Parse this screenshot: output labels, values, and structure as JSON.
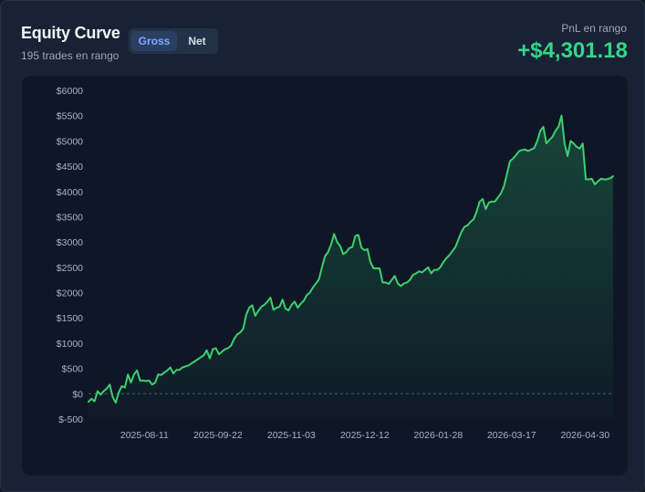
{
  "header": {
    "title": "Equity Curve",
    "subtitle": "195 trades en rango",
    "toggle": {
      "gross_label": "Gross",
      "net_label": "Net",
      "selected": "Gross"
    },
    "pnl_label": "PnL en rango",
    "pnl_value": "+$4,301.18"
  },
  "colors": {
    "line": "#3ccf6e",
    "pnl": "#34d58a",
    "active_toggle_text": "#7ea9ff",
    "zero_line": "#4a5568"
  },
  "chart_data": {
    "type": "area",
    "title": "",
    "xlabel": "",
    "ylabel": "",
    "ylim": [
      -500,
      6000
    ],
    "y_ticks": [
      "$6000",
      "$5500",
      "$5000",
      "$4500",
      "$4000",
      "$3500",
      "$3000",
      "$2500",
      "$2000",
      "$1500",
      "$1000",
      "$500",
      "$0",
      "$-500"
    ],
    "y_tick_values": [
      6000,
      5500,
      5000,
      4500,
      4000,
      3500,
      3000,
      2500,
      2000,
      1500,
      1000,
      500,
      0,
      -500
    ],
    "x_ticks": [
      "2025-08-11",
      "2025-09-22",
      "2025-11-03",
      "2025-12-12",
      "2026-01-28",
      "2026-03-17",
      "2026-04-30"
    ],
    "x_tick_positions": [
      16,
      37,
      58,
      79,
      100,
      121,
      142
    ],
    "grid": false,
    "zero_line": true,
    "series": [
      {
        "values": [
          -160,
          -100,
          -150,
          50,
          -20,
          50,
          100,
          180,
          -70,
          -180,
          30,
          150,
          120,
          380,
          220,
          380,
          460,
          260,
          260,
          250,
          260,
          180,
          220,
          380,
          370,
          420,
          460,
          520,
          400,
          470,
          470,
          520,
          540,
          560,
          600,
          640,
          680,
          720,
          760,
          860,
          700,
          880,
          900,
          780,
          830,
          880,
          900,
          950,
          1080,
          1170,
          1210,
          1280,
          1560,
          1700,
          1750,
          1540,
          1640,
          1720,
          1760,
          1820,
          1900,
          1660,
          1700,
          1720,
          1860,
          1680,
          1650,
          1760,
          1820,
          1700,
          1780,
          1840,
          1950,
          2000,
          2100,
          2180,
          2260,
          2500,
          2720,
          2800,
          2950,
          3160,
          3000,
          2920,
          2760,
          2800,
          2880,
          2900,
          3120,
          3140,
          2890,
          2840,
          2860,
          2600,
          2480,
          2480,
          2480,
          2200,
          2200,
          2170,
          2250,
          2330,
          2180,
          2130,
          2180,
          2200,
          2250,
          2350,
          2380,
          2420,
          2400,
          2450,
          2500,
          2380,
          2450,
          2450,
          2500,
          2600,
          2680,
          2740,
          2820,
          2900,
          3050,
          3200,
          3300,
          3330,
          3400,
          3450,
          3600,
          3800,
          3850,
          3650,
          3780,
          3800,
          3800,
          3880,
          3960,
          4100,
          4350,
          4600,
          4650,
          4720,
          4800,
          4820,
          4830,
          4800,
          4830,
          4860,
          5000,
          5200,
          5280,
          4950,
          5020,
          5080,
          5200,
          5280,
          5500,
          4950,
          4700,
          5000,
          4950,
          4880,
          4850,
          4950,
          4240,
          4240,
          4250,
          4140,
          4200,
          4250,
          4240,
          4240,
          4260,
          4301
        ]
      }
    ]
  }
}
